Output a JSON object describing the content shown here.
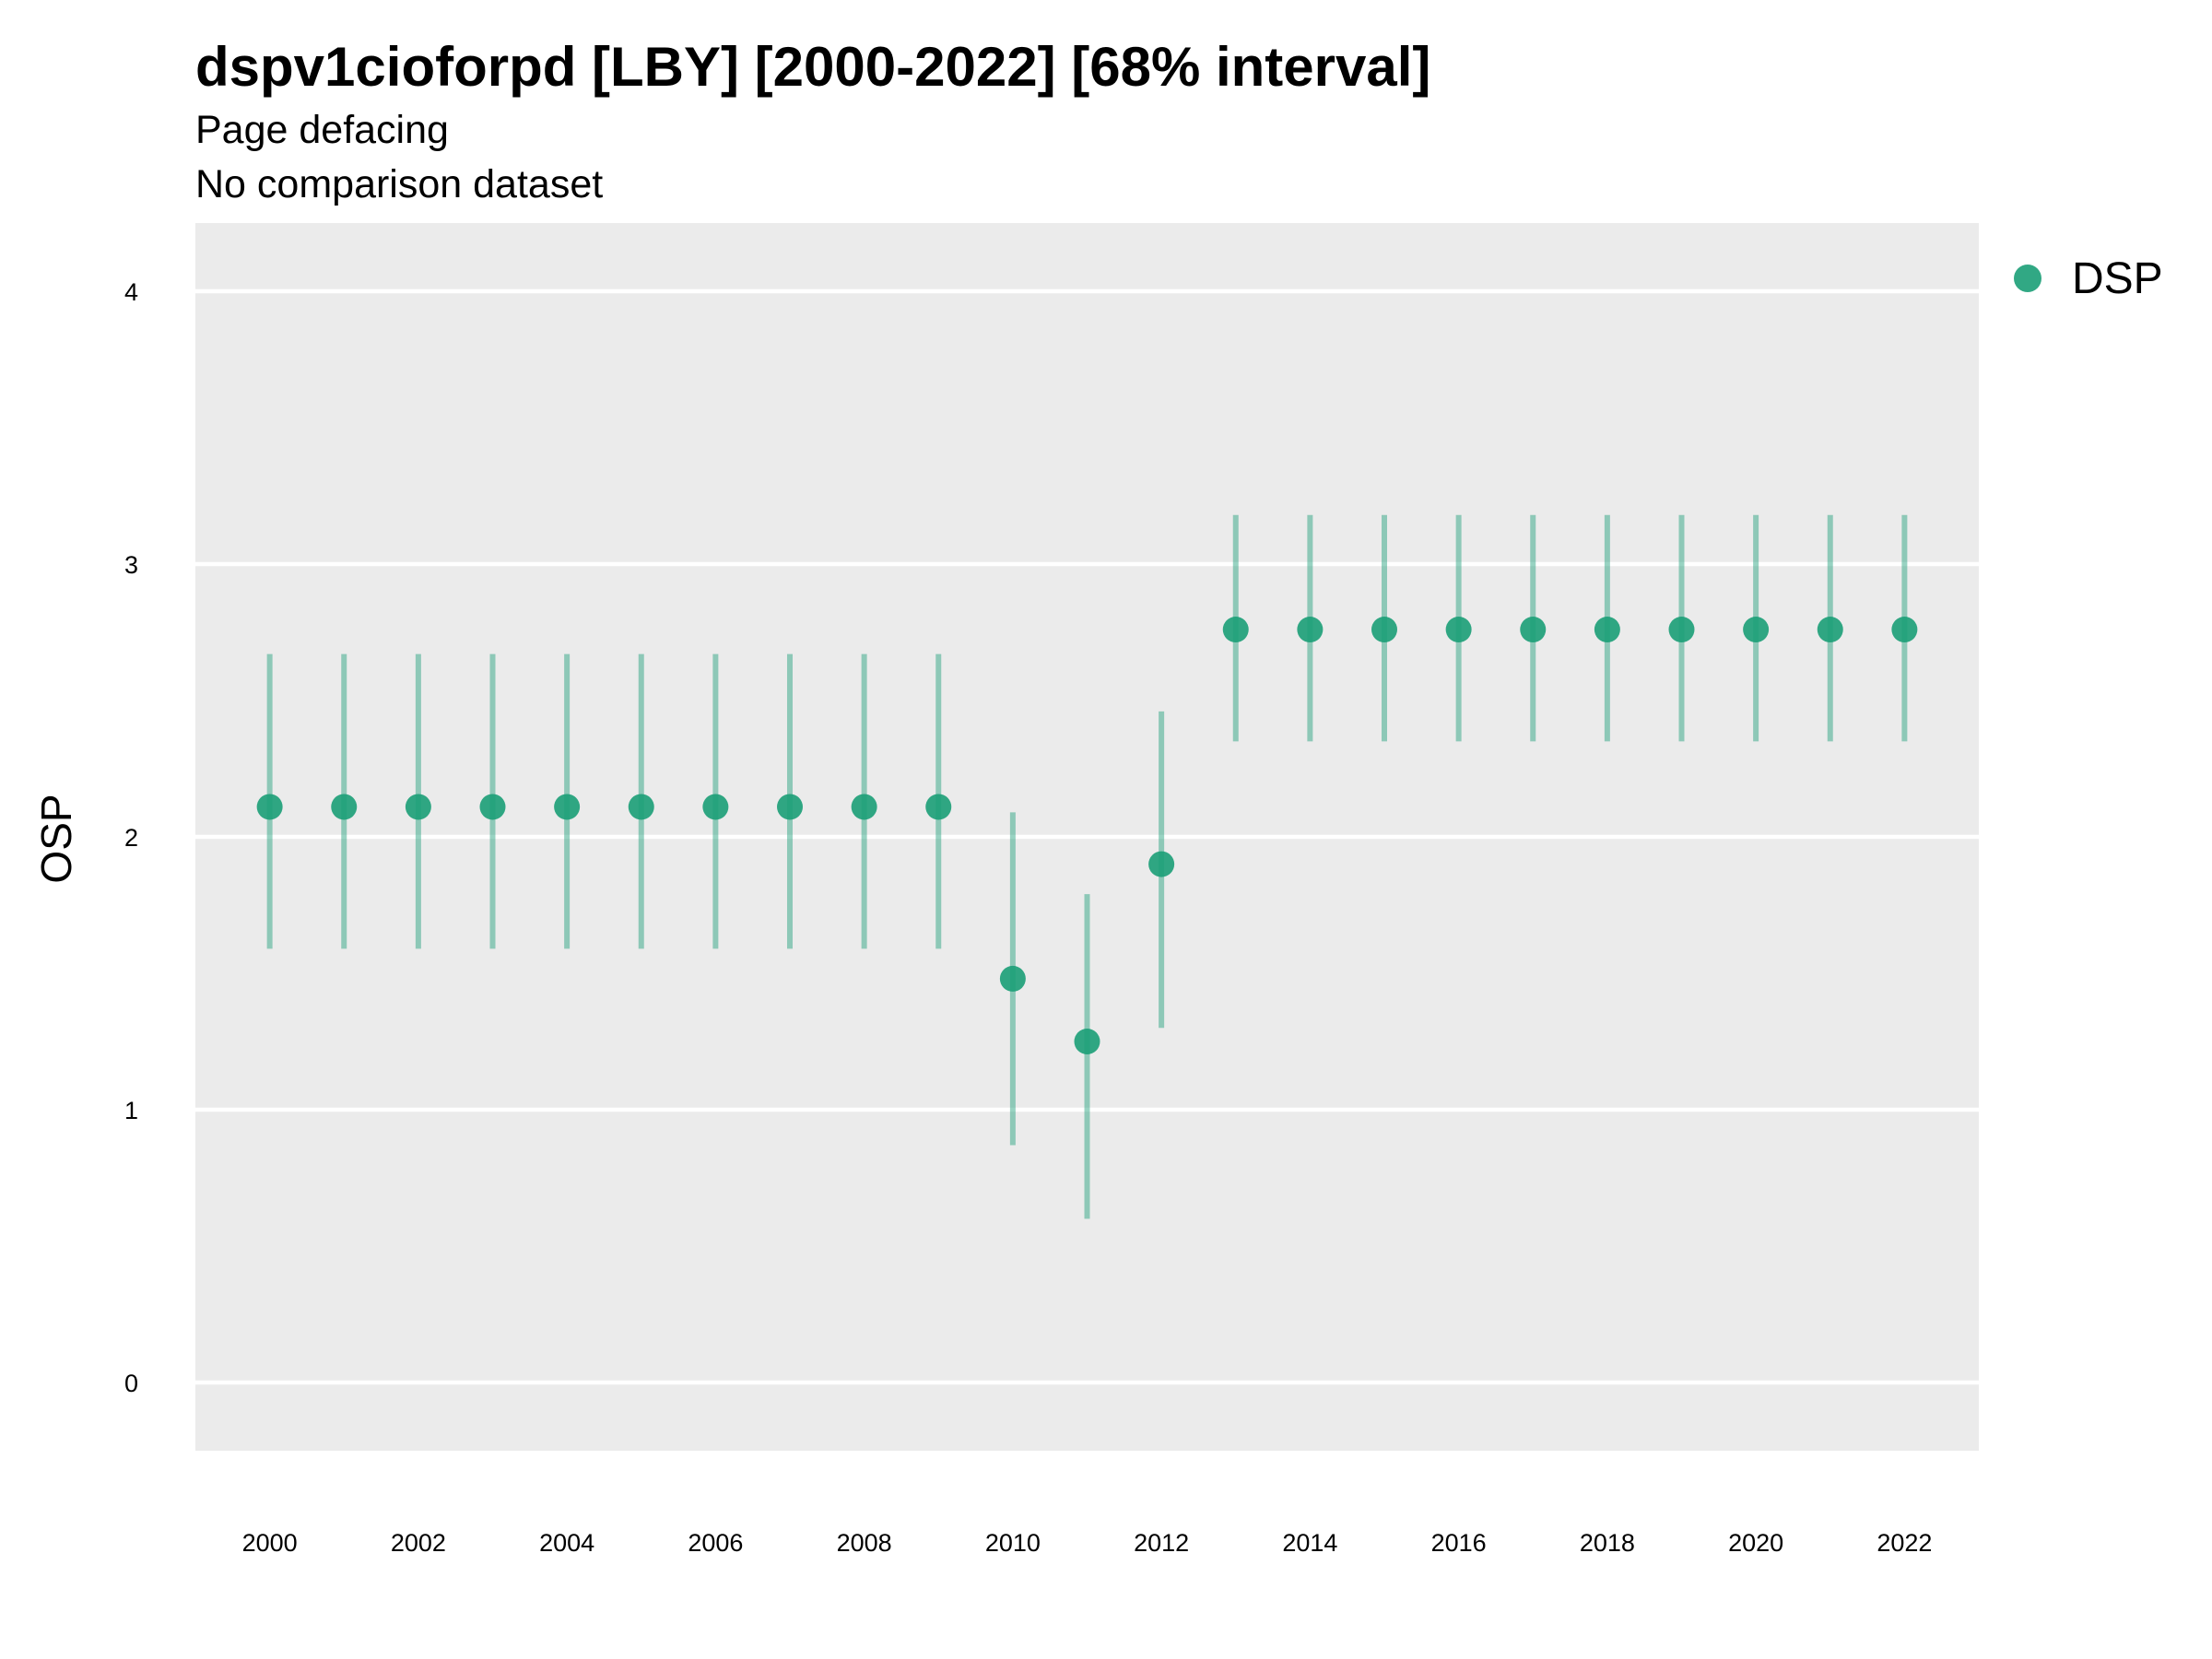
{
  "chart_data": {
    "type": "scatter",
    "title": "dspv1cioforpd [LBY] [2000-2022] [68% interval]",
    "subtitle_lines": [
      "Page defacing",
      "No comparison dataset"
    ],
    "xlabel": "",
    "ylabel": "OSP",
    "xlim": [
      1999,
      2023
    ],
    "ylim": [
      -0.25,
      4.25
    ],
    "x_ticks": [
      2000,
      2002,
      2004,
      2006,
      2008,
      2010,
      2012,
      2014,
      2016,
      2018,
      2020,
      2022
    ],
    "y_ticks": [
      0,
      1,
      2,
      3,
      4
    ],
    "grid": true,
    "legend_position": "right-top",
    "series": [
      {
        "name": "DSP",
        "color": "#1b9e77",
        "points": [
          {
            "x": 2000,
            "y": 2.11,
            "low": 1.59,
            "high": 2.67
          },
          {
            "x": 2001,
            "y": 2.11,
            "low": 1.59,
            "high": 2.67
          },
          {
            "x": 2002,
            "y": 2.11,
            "low": 1.59,
            "high": 2.67
          },
          {
            "x": 2003,
            "y": 2.11,
            "low": 1.59,
            "high": 2.67
          },
          {
            "x": 2004,
            "y": 2.11,
            "low": 1.59,
            "high": 2.67
          },
          {
            "x": 2005,
            "y": 2.11,
            "low": 1.59,
            "high": 2.67
          },
          {
            "x": 2006,
            "y": 2.11,
            "low": 1.59,
            "high": 2.67
          },
          {
            "x": 2007,
            "y": 2.11,
            "low": 1.59,
            "high": 2.67
          },
          {
            "x": 2008,
            "y": 2.11,
            "low": 1.59,
            "high": 2.67
          },
          {
            "x": 2009,
            "y": 2.11,
            "low": 1.59,
            "high": 2.67
          },
          {
            "x": 2010,
            "y": 1.48,
            "low": 0.87,
            "high": 2.09
          },
          {
            "x": 2011,
            "y": 1.25,
            "low": 0.6,
            "high": 1.79
          },
          {
            "x": 2012,
            "y": 1.9,
            "low": 1.3,
            "high": 2.46
          },
          {
            "x": 2013,
            "y": 2.76,
            "low": 2.35,
            "high": 3.18
          },
          {
            "x": 2014,
            "y": 2.76,
            "low": 2.35,
            "high": 3.18
          },
          {
            "x": 2015,
            "y": 2.76,
            "low": 2.35,
            "high": 3.18
          },
          {
            "x": 2016,
            "y": 2.76,
            "low": 2.35,
            "high": 3.18
          },
          {
            "x": 2017,
            "y": 2.76,
            "low": 2.35,
            "high": 3.18
          },
          {
            "x": 2018,
            "y": 2.76,
            "low": 2.35,
            "high": 3.18
          },
          {
            "x": 2019,
            "y": 2.76,
            "low": 2.35,
            "high": 3.18
          },
          {
            "x": 2020,
            "y": 2.76,
            "low": 2.35,
            "high": 3.18
          },
          {
            "x": 2021,
            "y": 2.76,
            "low": 2.35,
            "high": 3.18
          },
          {
            "x": 2022,
            "y": 2.76,
            "low": 2.35,
            "high": 3.18
          }
        ]
      }
    ]
  },
  "colors": {
    "panel_background": "#ebebeb",
    "gridline": "#ffffff",
    "series": "#1b9e77"
  }
}
